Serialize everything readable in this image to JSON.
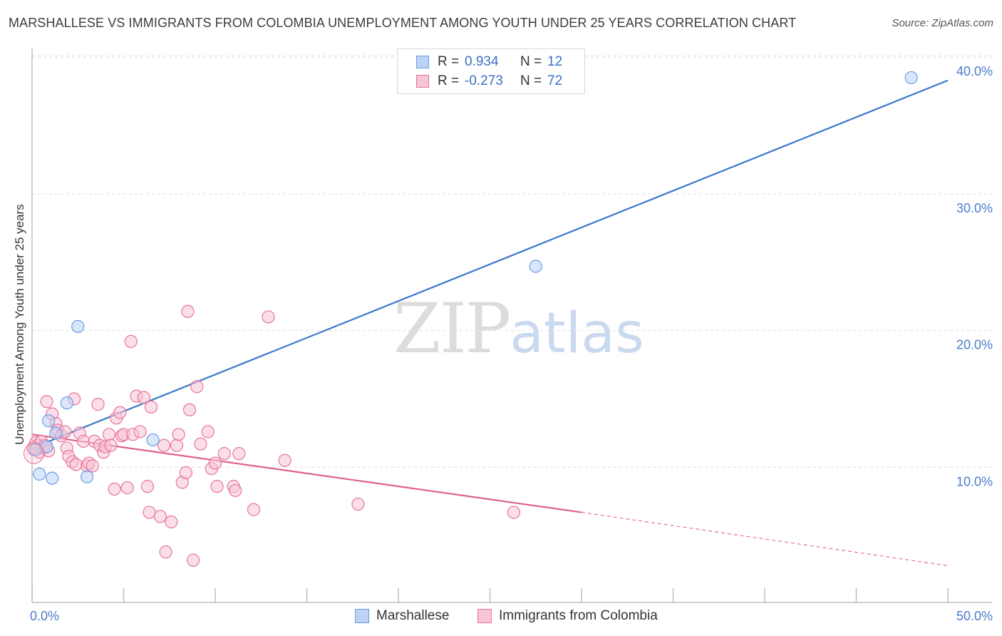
{
  "title": "MARSHALLESE VS IMMIGRANTS FROM COLOMBIA UNEMPLOYMENT AMONG YOUTH UNDER 25 YEARS CORRELATION CHART",
  "source": "Source: ZipAtlas.com",
  "watermark": {
    "zip": "ZIP",
    "atlas": "atlas"
  },
  "legend": {
    "r_label": "R =",
    "n_label": "N =",
    "rows": [
      {
        "r": "0.934",
        "n": "12"
      },
      {
        "r": "-0.273",
        "n": "72"
      }
    ]
  },
  "chart_data": {
    "type": "scatter",
    "title": "MARSHALLESE VS IMMIGRANTS FROM COLOMBIA UNEMPLOYMENT AMONG YOUTH UNDER 25 YEARS CORRELATION CHART",
    "xlabel": "",
    "ylabel": "Unemployment Among Youth under 25 years",
    "xlim": [
      0,
      50
    ],
    "ylim": [
      0,
      42
    ],
    "x_ticks": [
      0,
      5,
      10,
      15,
      20,
      25,
      30,
      35,
      40,
      45,
      50
    ],
    "x_tick_labels": {
      "0": "0.0%",
      "50": "50.0%"
    },
    "y_ticks": [
      10,
      20,
      30,
      40
    ],
    "y_tick_labels": [
      "10.0%",
      "20.0%",
      "30.0%",
      "40.0%"
    ],
    "grid": true,
    "series": [
      {
        "name": "Marshallese",
        "color": "#6b9be3",
        "fill": "#bcd3f5",
        "r": 0.934,
        "n": 12,
        "points": [
          [
            0.2,
            11.3
          ],
          [
            0.4,
            9.5
          ],
          [
            0.8,
            11.5
          ],
          [
            0.9,
            13.4
          ],
          [
            1.1,
            9.2
          ],
          [
            1.3,
            12.5
          ],
          [
            1.9,
            14.7
          ],
          [
            2.5,
            20.3
          ],
          [
            3.0,
            9.3
          ],
          [
            6.6,
            12.0
          ],
          [
            27.5,
            24.7
          ],
          [
            48.0,
            38.5
          ]
        ],
        "trend": {
          "x0": 0,
          "y0": 11.4,
          "x1": 50,
          "y1": 38.3
        }
      },
      {
        "name": "Immigrants from Colombia",
        "color": "#e8739a",
        "fill": "#f7c5d5",
        "r": -0.273,
        "n": 72,
        "points": [
          [
            0.1,
            11.3
          ],
          [
            0.2,
            11.8
          ],
          [
            0.3,
            11.6
          ],
          [
            0.4,
            11.1
          ],
          [
            0.5,
            11.9
          ],
          [
            0.6,
            11.4
          ],
          [
            0.7,
            11.6
          ],
          [
            0.8,
            14.8
          ],
          [
            0.9,
            11.2
          ],
          [
            1.1,
            13.9
          ],
          [
            1.3,
            13.2
          ],
          [
            1.4,
            12.7
          ],
          [
            1.6,
            12.3
          ],
          [
            1.8,
            12.6
          ],
          [
            1.9,
            11.4
          ],
          [
            2.0,
            10.8
          ],
          [
            2.2,
            10.4
          ],
          [
            2.3,
            15.0
          ],
          [
            2.4,
            10.2
          ],
          [
            2.6,
            12.5
          ],
          [
            2.8,
            11.9
          ],
          [
            3.0,
            10.1
          ],
          [
            3.1,
            10.3
          ],
          [
            3.3,
            10.1
          ],
          [
            3.4,
            11.9
          ],
          [
            3.6,
            14.6
          ],
          [
            3.7,
            11.6
          ],
          [
            3.9,
            11.1
          ],
          [
            4.0,
            11.5
          ],
          [
            4.2,
            12.4
          ],
          [
            4.3,
            11.6
          ],
          [
            4.5,
            8.4
          ],
          [
            4.6,
            13.6
          ],
          [
            4.8,
            14.0
          ],
          [
            4.9,
            12.3
          ],
          [
            5.0,
            12.4
          ],
          [
            5.2,
            8.5
          ],
          [
            5.4,
            19.2
          ],
          [
            5.5,
            12.4
          ],
          [
            5.7,
            15.2
          ],
          [
            5.9,
            12.6
          ],
          [
            6.1,
            15.1
          ],
          [
            6.3,
            8.6
          ],
          [
            6.4,
            6.7
          ],
          [
            6.5,
            14.4
          ],
          [
            7.0,
            6.4
          ],
          [
            7.2,
            11.6
          ],
          [
            7.3,
            3.8
          ],
          [
            7.6,
            6.0
          ],
          [
            7.9,
            11.6
          ],
          [
            8.0,
            12.4
          ],
          [
            8.2,
            8.9
          ],
          [
            8.4,
            9.6
          ],
          [
            8.5,
            21.4
          ],
          [
            8.6,
            14.2
          ],
          [
            8.8,
            3.2
          ],
          [
            9.0,
            15.9
          ],
          [
            9.2,
            11.7
          ],
          [
            9.6,
            12.6
          ],
          [
            9.8,
            9.9
          ],
          [
            10.0,
            10.3
          ],
          [
            10.1,
            8.6
          ],
          [
            10.5,
            11.0
          ],
          [
            11.0,
            8.6
          ],
          [
            11.1,
            8.3
          ],
          [
            11.3,
            11.0
          ],
          [
            12.1,
            6.9
          ],
          [
            12.9,
            21.0
          ],
          [
            13.8,
            10.5
          ],
          [
            17.8,
            7.3
          ],
          [
            26.3,
            6.7
          ],
          [
            0.05,
            11.4
          ]
        ],
        "trend": {
          "x0": 0,
          "y0": 12.4,
          "x1": 30,
          "y1": 6.7
        },
        "trend_extension": {
          "x0": 30,
          "y0": 6.7,
          "x1": 50,
          "y1": 2.8
        }
      }
    ]
  },
  "bottom_legend": [
    {
      "label": "Marshallese"
    },
    {
      "label": "Immigrants from Colombia"
    }
  ]
}
